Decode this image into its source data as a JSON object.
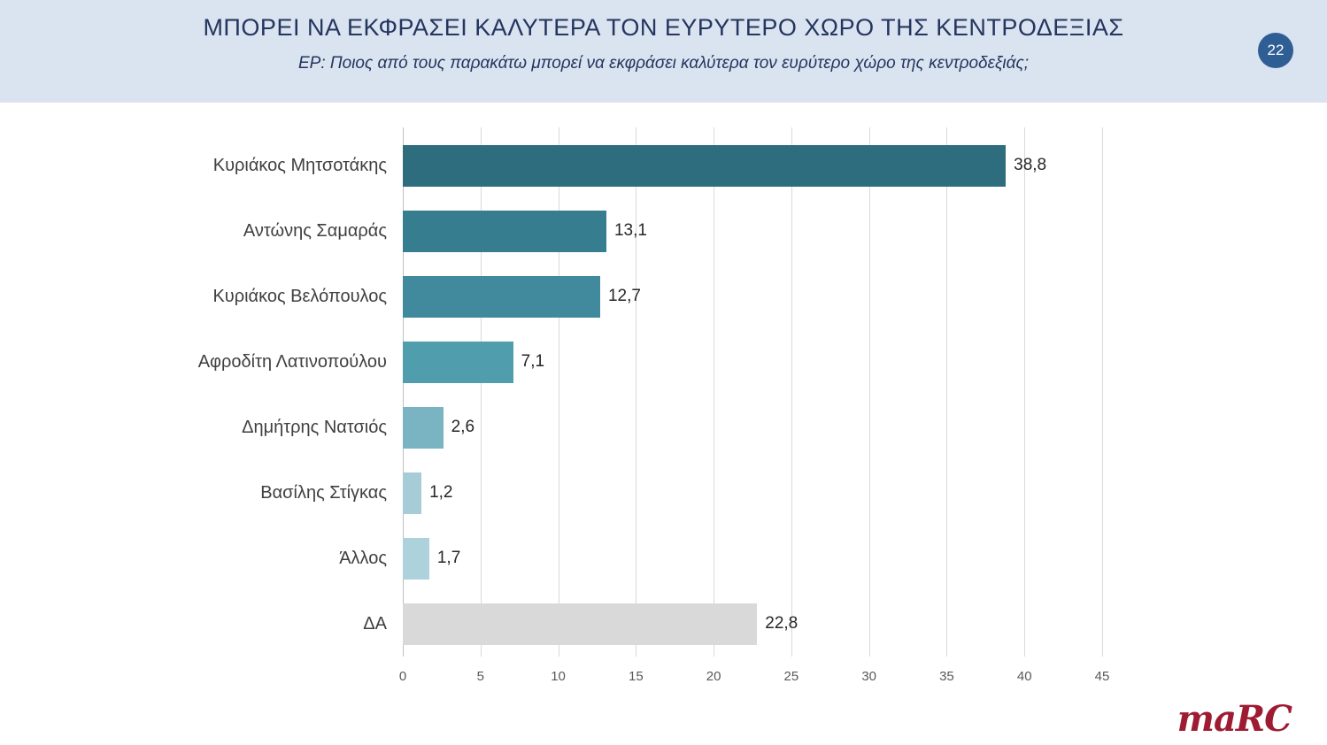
{
  "header": {
    "title": "ΜΠΟΡΕΙ ΝΑ ΕΚΦΡΑΣΕΙ ΚΑΛΥΤΕΡΑ ΤΟΝ ΕΥΡΥΤΕΡΟ ΧΩΡΟ ΤΗΣ ΚΕΝΤΡΟΔΕΞΙΑΣ",
    "subtitle": "ΕΡ: Ποιος από τους παρακάτω μπορεί να εκφράσει καλύτερα τον ευρύτερο χώρο της κεντροδεξιάς;",
    "page_number": "22",
    "band_color": "#dae3f0",
    "title_color": "#24355e",
    "badge_color": "#2e5e94"
  },
  "chart_data": {
    "type": "bar",
    "orientation": "horizontal",
    "title": "ΜΠΟΡΕΙ ΝΑ ΕΚΦΡΑΣΕΙ ΚΑΛΥΤΕΡΑ ΤΟΝ ΕΥΡΥΤΕΡΟ ΧΩΡΟ ΤΗΣ ΚΕΝΤΡΟΔΕΞΙΑΣ",
    "subtitle": "ΕΡ: Ποιος από τους παρακάτω μπορεί να εκφράσει καλύτερα τον ευρύτερο χώρο της κεντροδεξιάς;",
    "categories": [
      "Κυριάκος Μητσοτάκης",
      "Αντώνης Σαμαράς",
      "Κυριάκος Βελόπουλος",
      "Αφροδίτη Λατινοπούλου",
      "Δημήτρης Νατσιός",
      "Βασίλης Στίγκας",
      "Άλλος",
      "ΔΑ"
    ],
    "values": [
      38.8,
      13.1,
      12.7,
      7.1,
      2.6,
      1.2,
      1.7,
      22.8
    ],
    "value_labels": [
      "38,8",
      "13,1",
      "12,7",
      "7,1",
      "2,6",
      "1,2",
      "1,7",
      "22,8"
    ],
    "bar_colors": [
      "#2d6d7e",
      "#367d90",
      "#418a9d",
      "#509dad",
      "#7ab3c1",
      "#a6ccd7",
      "#aed2dc",
      "#d9d9d9"
    ],
    "xlabel": "",
    "ylabel": "",
    "xlim": [
      0,
      45
    ],
    "x_ticks": [
      0,
      5,
      10,
      15,
      20,
      25,
      30,
      35,
      40,
      45
    ],
    "grid": true,
    "legend": false,
    "gridline_color": "#d9d9d9"
  },
  "footer": {
    "logo_text": "maRC",
    "logo_color": "#9e1b32"
  }
}
